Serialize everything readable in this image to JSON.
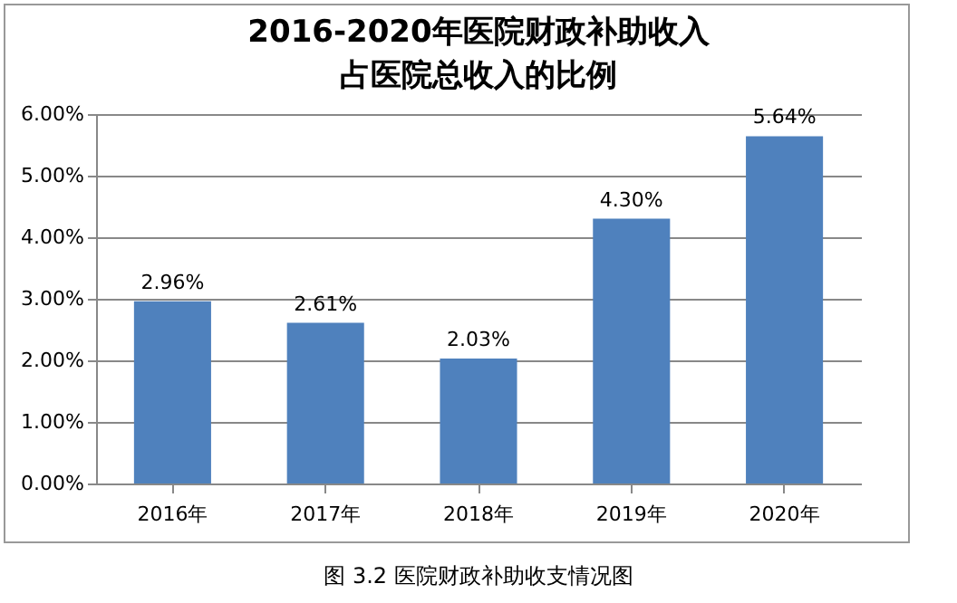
{
  "chart_data": {
    "type": "bar",
    "title": "2016-2020年医院财政补助收入占医院总收入的比例",
    "categories": [
      "2016年",
      "2017年",
      "2018年",
      "2019年",
      "2020年"
    ],
    "values": [
      2.96,
      2.61,
      2.03,
      4.3,
      5.64
    ],
    "value_labels": [
      "2.96%",
      "2.61%",
      "2.03%",
      "4.30%",
      "5.64%"
    ],
    "color": "#4f81bd",
    "ylim": [
      0,
      6
    ],
    "yticks": [
      {
        "value": 0,
        "label": "0.00%"
      },
      {
        "value": 1,
        "label": "1.00%"
      },
      {
        "value": 2,
        "label": "2.00%"
      },
      {
        "value": 3,
        "label": "3.00%"
      },
      {
        "value": 4,
        "label": "4.00%"
      },
      {
        "value": 5,
        "label": "5.00%"
      },
      {
        "value": 6,
        "label": "6.00%"
      }
    ],
    "grid": "y",
    "annotations": [
      "图 3.2 医院财政补助收支情况图"
    ]
  }
}
